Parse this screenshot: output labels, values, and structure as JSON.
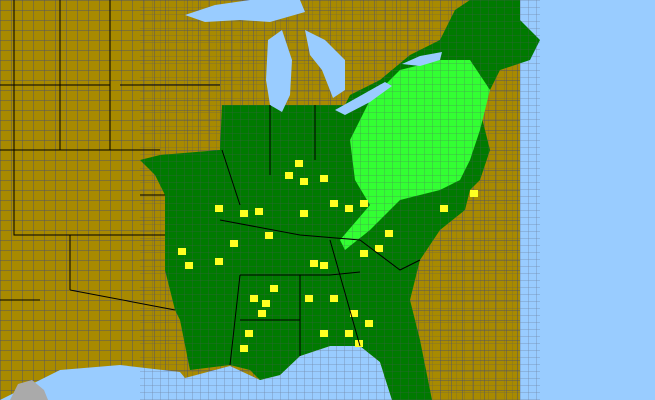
{
  "map": {
    "colors": {
      "water": "#99ccff",
      "outside_range": "#a88a00",
      "native_range": "#007a00",
      "secondary_range": "#33ff33",
      "highlight_counties": "#ffff22",
      "foreign_land": "#aaaaaa",
      "county_lines": "#555566"
    }
  }
}
